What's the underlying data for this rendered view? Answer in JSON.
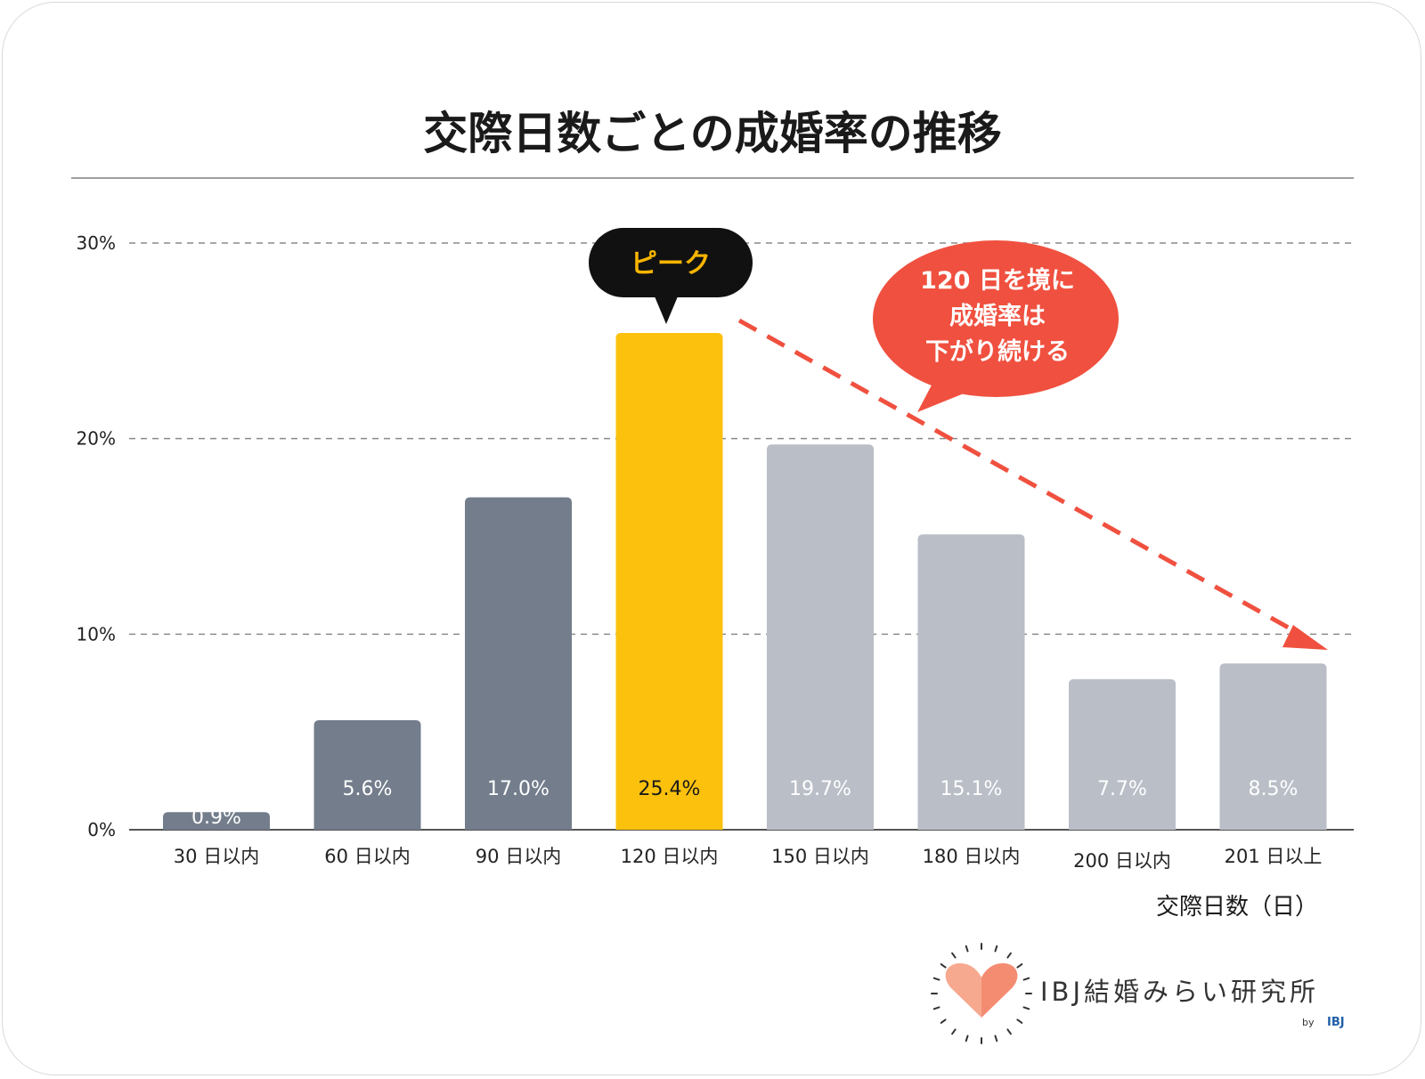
{
  "chart_data": {
    "type": "bar",
    "title": "交際日数ごとの成婚率の推移",
    "categories": [
      "30 日以内",
      "60 日以内",
      "90 日以内",
      "120 日以内",
      "150 日以内",
      "180 日以内",
      "200 日以内",
      "201 日以上"
    ],
    "values": [
      0.9,
      5.6,
      17.0,
      25.4,
      19.7,
      15.1,
      7.7,
      8.5
    ],
    "value_labels": [
      "0.9%",
      "5.6%",
      "17.0%",
      "25.4%",
      "19.7%",
      "15.1%",
      "7.7%",
      "8.5%"
    ],
    "ylim": [
      0,
      30
    ],
    "yticks": [
      0,
      10,
      20,
      30
    ],
    "ytick_labels": [
      "0%",
      "10%",
      "20%",
      "30%"
    ],
    "xlabel": "交際日数（日）",
    "ylabel": "",
    "grid": true,
    "bar_colors": [
      "#737d8c",
      "#737d8c",
      "#737d8c",
      "#fbc10d",
      "#b9bec7",
      "#b9bec7",
      "#b9bec7",
      "#b9bec7"
    ],
    "highlight_index": 3,
    "annotations": {
      "peak_label": "ピーク",
      "trend_bubble": [
        "120 日を境に",
        "成婚率は",
        "下がり続ける"
      ]
    }
  },
  "colors": {
    "dark_bar": "#737d8c",
    "light_bar": "#b9bec7",
    "highlight": "#fbc10d",
    "arrow": "#f0503f",
    "bubble": "#f0503f"
  },
  "brand": {
    "name": "IBJ結婚みらい研究所",
    "by": "by",
    "by_name": "IBJ"
  }
}
